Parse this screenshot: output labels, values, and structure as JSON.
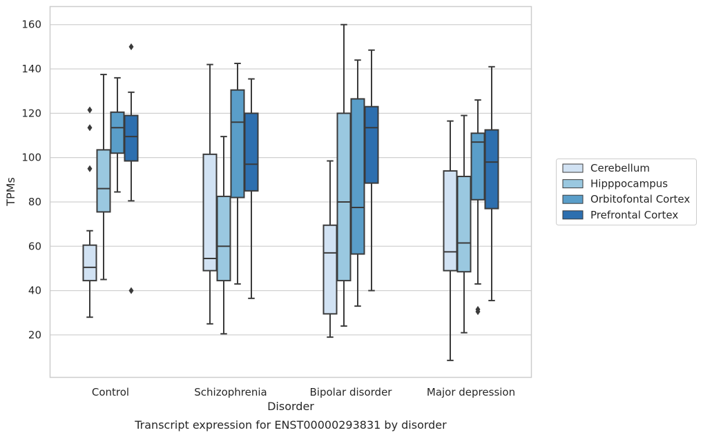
{
  "chart_data": {
    "type": "box",
    "caption": "Transcript expression for ENST00000293831 by disorder",
    "xlabel": "Disorder",
    "ylabel": "TPMs",
    "ylim": [
      1,
      168
    ],
    "yticks": [
      20,
      40,
      60,
      80,
      100,
      120,
      140,
      160
    ],
    "grid": true,
    "legend_position": "right",
    "categories": [
      "Control",
      "Schizophrenia",
      "Bipolar disorder",
      "Major depression"
    ],
    "series": [
      {
        "name": "Cerebellum",
        "color": "#d1e2f3",
        "boxes": [
          {
            "whisker_low": 28,
            "q1": 44.5,
            "median": 50.5,
            "q3": 60.5,
            "whisker_high": 67,
            "outliers": [
              95,
              113.5,
              121.5
            ]
          },
          {
            "whisker_low": 25,
            "q1": 49,
            "median": 54.5,
            "q3": 101.5,
            "whisker_high": 142,
            "outliers": []
          },
          {
            "whisker_low": 19,
            "q1": 29.5,
            "median": 57,
            "q3": 69.5,
            "whisker_high": 98.5,
            "outliers": []
          },
          {
            "whisker_low": 8.5,
            "q1": 49,
            "median": 57.5,
            "q3": 94,
            "whisker_high": 116.5,
            "outliers": []
          }
        ]
      },
      {
        "name": "Hipppocampus",
        "color": "#9ac8e0",
        "boxes": [
          {
            "whisker_low": 45,
            "q1": 75.5,
            "median": 86,
            "q3": 103.5,
            "whisker_high": 137.5,
            "outliers": []
          },
          {
            "whisker_low": 20.5,
            "q1": 44.5,
            "median": 60,
            "q3": 82.5,
            "whisker_high": 109.5,
            "outliers": []
          },
          {
            "whisker_low": 24,
            "q1": 44.5,
            "median": 80,
            "q3": 120,
            "whisker_high": 160,
            "outliers": []
          },
          {
            "whisker_low": 21,
            "q1": 48.5,
            "median": 61.5,
            "q3": 91.5,
            "whisker_high": 119,
            "outliers": []
          }
        ]
      },
      {
        "name": "Orbitofontal Cortex",
        "color": "#5a9ec9",
        "boxes": [
          {
            "whisker_low": 84.5,
            "q1": 102,
            "median": 113.5,
            "q3": 120.5,
            "whisker_high": 136,
            "outliers": []
          },
          {
            "whisker_low": 43,
            "q1": 82,
            "median": 116,
            "q3": 130.5,
            "whisker_high": 142.5,
            "outliers": []
          },
          {
            "whisker_low": 33,
            "q1": 56.5,
            "median": 77.5,
            "q3": 126.5,
            "whisker_high": 144,
            "outliers": []
          },
          {
            "whisker_low": 43,
            "q1": 81,
            "median": 107,
            "q3": 111,
            "whisker_high": 126,
            "outliers": [
              30.5,
              31.5
            ]
          }
        ]
      },
      {
        "name": "Prefrontal Cortex",
        "color": "#2d6faf",
        "boxes": [
          {
            "whisker_low": 80.5,
            "q1": 98.5,
            "median": 109.5,
            "q3": 119,
            "whisker_high": 129.5,
            "outliers": [
              40,
              150
            ]
          },
          {
            "whisker_low": 36.5,
            "q1": 85,
            "median": 97,
            "q3": 120,
            "whisker_high": 135.5,
            "outliers": []
          },
          {
            "whisker_low": 40,
            "q1": 88.5,
            "median": 113.5,
            "q3": 123,
            "whisker_high": 148.5,
            "outliers": []
          },
          {
            "whisker_low": 35.5,
            "q1": 77,
            "median": 98,
            "q3": 112.5,
            "whisker_high": 141,
            "outliers": []
          }
        ]
      }
    ]
  }
}
